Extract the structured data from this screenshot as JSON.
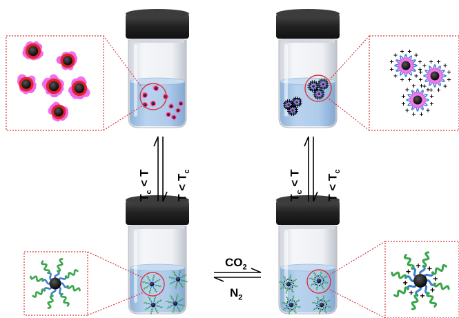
{
  "labels": {
    "heat_up": [
      "T",
      "c",
      " < T"
    ],
    "cool_down": [
      "T < T",
      "c"
    ],
    "gas_on": [
      "CO",
      "2"
    ],
    "gas_off": [
      "N",
      "2"
    ]
  },
  "colors": {
    "lid": "#2a2a2a",
    "glass": "#e9ecf2",
    "liquid": "#a8c6e6",
    "core": "#111111",
    "pink_shell": "#ee66e6",
    "red_core_halo": "#e4202a",
    "blue_chain": "#3d7fd4",
    "green_chain": "#3aa64a",
    "zoom_frame": "#d8333a"
  },
  "icons": [
    "vial-icon",
    "micelle-icon",
    "nanoparticle-icon",
    "equilibrium-arrow-icon",
    "zoom-inset-icon"
  ]
}
